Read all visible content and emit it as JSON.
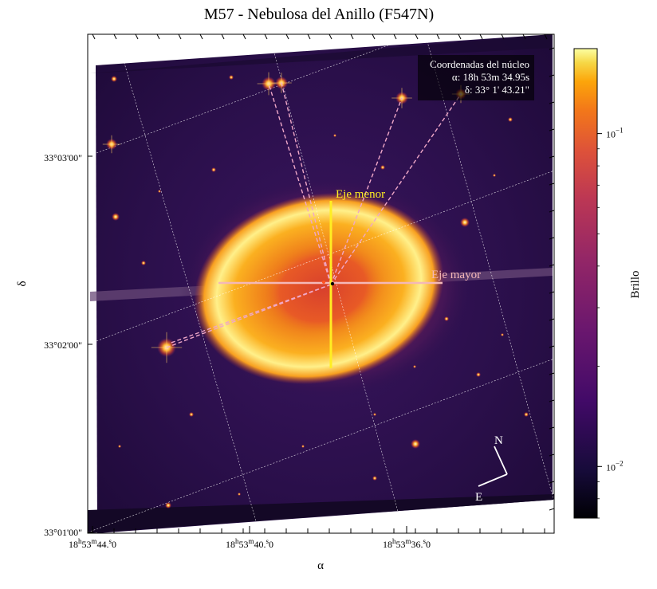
{
  "figure": {
    "title": "M57 - Nebulosa del Anillo (F547N)",
    "x_axis_label": "α",
    "y_axis_label": "δ",
    "colorbar_label": "Brillo",
    "colormap": "inferno",
    "colorbar_scale": "log",
    "colorbar_ticks": [
      {
        "label_base": "10",
        "label_exp": "−1",
        "value": 0.1
      },
      {
        "label_base": "10",
        "label_exp": "−2",
        "value": 0.01
      }
    ],
    "colorbar_range": [
      0.007,
      0.18
    ],
    "dec_ticks": [
      "33°03'00\"",
      "33°02'00\"",
      "33°01'00\""
    ],
    "ra_ticks": [
      {
        "h": "18",
        "m": "53",
        "s": "44.0"
      },
      {
        "h": "18",
        "m": "53",
        "s": "40.0"
      },
      {
        "h": "18",
        "m": "53",
        "s": "36.0"
      }
    ]
  },
  "annotations": {
    "coords_box": {
      "title": "Coordenadas del núcleo",
      "ra": "α: 18h 53m 34.95s",
      "dec": "δ: 33° 1' 43.21\""
    },
    "minor_axis_label": "Eje menor",
    "major_axis_label": "Eje mayor",
    "compass_north": "N",
    "compass_east": "E"
  },
  "colors": {
    "minor_axis": "#ffee22",
    "major_axis": "#f4b8b8",
    "guide_lines": "#f0a8c8",
    "background_sky": "#2a0f4a"
  }
}
